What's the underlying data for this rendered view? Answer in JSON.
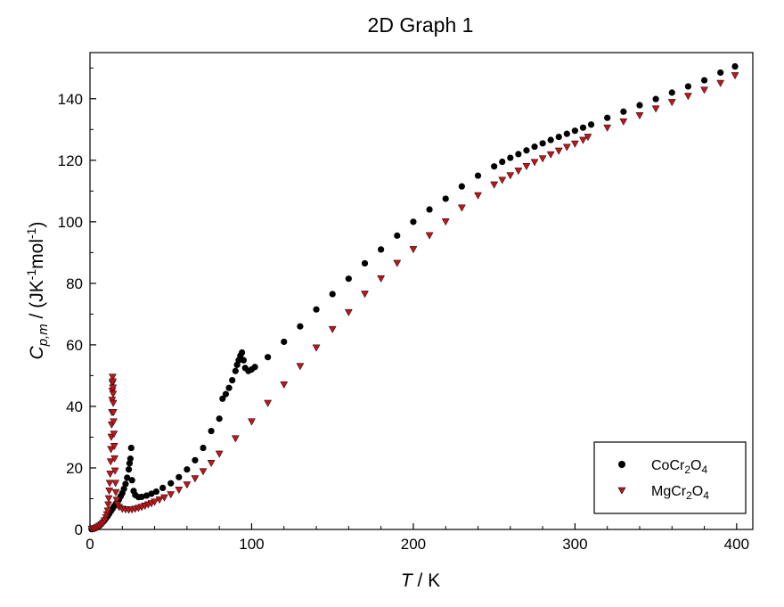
{
  "chart_data": {
    "type": "scatter",
    "title": "2D Graph 1",
    "xlabel": {
      "italic": "T",
      "rest": " / K"
    },
    "ylabel": {
      "main": "C",
      "sub": "p,m",
      "unit_open": " / (JK",
      "sup1": "-1",
      "unit_mid": "mol",
      "sup2": "-1",
      "unit_close": ")"
    },
    "xlim": [
      0,
      410
    ],
    "ylim": [
      0,
      155
    ],
    "xticks": [
      0,
      100,
      200,
      300,
      400
    ],
    "yticks": [
      0,
      20,
      40,
      60,
      80,
      100,
      120,
      140
    ],
    "grid": false,
    "legend_position": "bottom-right",
    "series": [
      {
        "name": {
          "base": "CoCr",
          "sub1": "2",
          "mid": "O",
          "sub2": "4"
        },
        "marker": "circle",
        "color": "#000000",
        "points": [
          [
            1,
            0.1
          ],
          [
            2,
            0.2
          ],
          [
            3,
            0.4
          ],
          [
            4,
            0.6
          ],
          [
            5,
            0.9
          ],
          [
            6,
            1.3
          ],
          [
            7,
            1.8
          ],
          [
            8,
            2.4
          ],
          [
            9,
            3.0
          ],
          [
            10,
            3.7
          ],
          [
            11,
            4.4
          ],
          [
            12,
            5.2
          ],
          [
            13,
            6.0
          ],
          [
            14,
            6.8
          ],
          [
            15,
            7.6
          ],
          [
            16,
            8.3
          ],
          [
            17,
            9.0
          ],
          [
            18,
            9.8
          ],
          [
            19,
            10.8
          ],
          [
            20,
            11.8
          ],
          [
            21,
            13.2
          ],
          [
            22,
            14.8
          ],
          [
            23,
            16.8
          ],
          [
            24,
            19.5
          ],
          [
            24.5,
            21.5
          ],
          [
            25,
            23.0
          ],
          [
            25.5,
            26.5
          ],
          [
            26,
            16.0
          ],
          [
            27,
            12.5
          ],
          [
            28,
            11.2
          ],
          [
            30,
            10.5
          ],
          [
            32,
            10.6
          ],
          [
            35,
            11.0
          ],
          [
            38,
            11.6
          ],
          [
            41,
            12.3
          ],
          [
            45,
            13.5
          ],
          [
            50,
            15.0
          ],
          [
            55,
            17.0
          ],
          [
            60,
            19.5
          ],
          [
            65,
            22.5
          ],
          [
            70,
            26.5
          ],
          [
            75,
            32.0
          ],
          [
            80,
            36.0
          ],
          [
            82,
            42.5
          ],
          [
            84,
            44.0
          ],
          [
            86,
            46.0
          ],
          [
            88,
            48.5
          ],
          [
            90,
            51.5
          ],
          [
            91,
            53.5
          ],
          [
            92,
            55.0
          ],
          [
            93,
            56.5
          ],
          [
            94,
            57.5
          ],
          [
            95,
            55.0
          ],
          [
            96,
            52.5
          ],
          [
            98,
            51.5
          ],
          [
            100,
            52.0
          ],
          [
            102,
            52.8
          ],
          [
            110,
            56.0
          ],
          [
            120,
            61.0
          ],
          [
            130,
            66.0
          ],
          [
            140,
            71.5
          ],
          [
            150,
            76.5
          ],
          [
            160,
            81.5
          ],
          [
            170,
            86.5
          ],
          [
            180,
            91.0
          ],
          [
            190,
            95.5
          ],
          [
            200,
            100.0
          ],
          [
            210,
            104.0
          ],
          [
            220,
            107.5
          ],
          [
            230,
            111.5
          ],
          [
            240,
            115.0
          ],
          [
            250,
            118.0
          ],
          [
            255,
            119.5
          ],
          [
            260,
            120.8
          ],
          [
            265,
            122.0
          ],
          [
            270,
            123.2
          ],
          [
            275,
            124.4
          ],
          [
            280,
            125.5
          ],
          [
            285,
            126.6
          ],
          [
            290,
            127.6
          ],
          [
            295,
            128.6
          ],
          [
            300,
            129.6
          ],
          [
            305,
            130.6
          ],
          [
            310,
            131.6
          ],
          [
            320,
            133.8
          ],
          [
            330,
            135.8
          ],
          [
            340,
            137.9
          ],
          [
            350,
            139.9
          ],
          [
            360,
            142.0
          ],
          [
            370,
            144.0
          ],
          [
            380,
            146.0
          ],
          [
            390,
            148.5
          ],
          [
            399,
            150.5
          ]
        ]
      },
      {
        "name": {
          "base": "MgCr",
          "sub1": "2",
          "mid": "O",
          "sub2": "4"
        },
        "marker": "triangle-down",
        "color": "#c0151a",
        "points": [
          [
            1,
            0.1
          ],
          [
            2,
            0.2
          ],
          [
            3,
            0.3
          ],
          [
            4,
            0.5
          ],
          [
            5,
            0.8
          ],
          [
            6,
            1.1
          ],
          [
            7,
            1.5
          ],
          [
            8,
            2.0
          ],
          [
            9,
            2.8
          ],
          [
            10,
            3.8
          ],
          [
            10.5,
            4.8
          ],
          [
            11,
            6.0
          ],
          [
            11.3,
            8.0
          ],
          [
            11.6,
            10.0
          ],
          [
            11.9,
            12.5
          ],
          [
            12.2,
            15.0
          ],
          [
            12.5,
            18.0
          ],
          [
            12.8,
            22.0
          ],
          [
            13,
            26.0
          ],
          [
            13.2,
            30.0
          ],
          [
            13.4,
            34.0
          ],
          [
            13.6,
            38.0
          ],
          [
            13.7,
            42.0
          ],
          [
            13.8,
            45.0
          ],
          [
            13.9,
            47.5
          ],
          [
            14,
            49.5
          ],
          [
            14.1,
            48.0
          ],
          [
            14.2,
            46.0
          ],
          [
            14.3,
            44.0
          ],
          [
            14.4,
            41.0
          ],
          [
            14.5,
            38.0
          ],
          [
            14.6,
            35.0
          ],
          [
            14.8,
            31.0
          ],
          [
            15,
            27.0
          ],
          [
            15.2,
            23.0
          ],
          [
            15.5,
            19.0
          ],
          [
            15.8,
            15.0
          ],
          [
            16,
            12.0
          ],
          [
            16.5,
            9.5
          ],
          [
            17,
            8.0
          ],
          [
            18,
            7.2
          ],
          [
            20,
            6.6
          ],
          [
            22,
            6.4
          ],
          [
            24,
            6.3
          ],
          [
            26,
            6.4
          ],
          [
            28,
            6.6
          ],
          [
            30,
            6.9
          ],
          [
            32,
            7.2
          ],
          [
            34,
            7.6
          ],
          [
            36,
            8.0
          ],
          [
            38,
            8.4
          ],
          [
            40,
            8.9
          ],
          [
            43,
            9.6
          ],
          [
            46,
            10.3
          ],
          [
            50,
            11.3
          ],
          [
            55,
            12.8
          ],
          [
            60,
            14.5
          ],
          [
            65,
            16.5
          ],
          [
            70,
            18.8
          ],
          [
            75,
            21.5
          ],
          [
            80,
            24.5
          ],
          [
            90,
            29.5
          ],
          [
            100,
            35.0
          ],
          [
            110,
            41.0
          ],
          [
            120,
            47.0
          ],
          [
            130,
            53.0
          ],
          [
            140,
            59.0
          ],
          [
            150,
            65.0
          ],
          [
            160,
            70.5
          ],
          [
            170,
            76.5
          ],
          [
            180,
            81.5
          ],
          [
            190,
            86.5
          ],
          [
            200,
            91.0
          ],
          [
            210,
            95.5
          ],
          [
            220,
            100.0
          ],
          [
            230,
            104.5
          ],
          [
            240,
            108.5
          ],
          [
            250,
            112.0
          ],
          [
            255,
            113.5
          ],
          [
            260,
            115.0
          ],
          [
            265,
            116.5
          ],
          [
            270,
            118.0
          ],
          [
            275,
            119.3
          ],
          [
            280,
            120.5
          ],
          [
            285,
            121.8
          ],
          [
            290,
            123.0
          ],
          [
            295,
            124.2
          ],
          [
            300,
            125.3
          ],
          [
            305,
            126.5
          ],
          [
            308,
            127.5
          ],
          [
            320,
            130.5
          ],
          [
            330,
            132.5
          ],
          [
            340,
            134.5
          ],
          [
            350,
            136.7
          ],
          [
            360,
            138.8
          ],
          [
            370,
            140.8
          ],
          [
            380,
            142.8
          ],
          [
            390,
            145.0
          ],
          [
            399,
            147.5
          ]
        ]
      }
    ]
  }
}
